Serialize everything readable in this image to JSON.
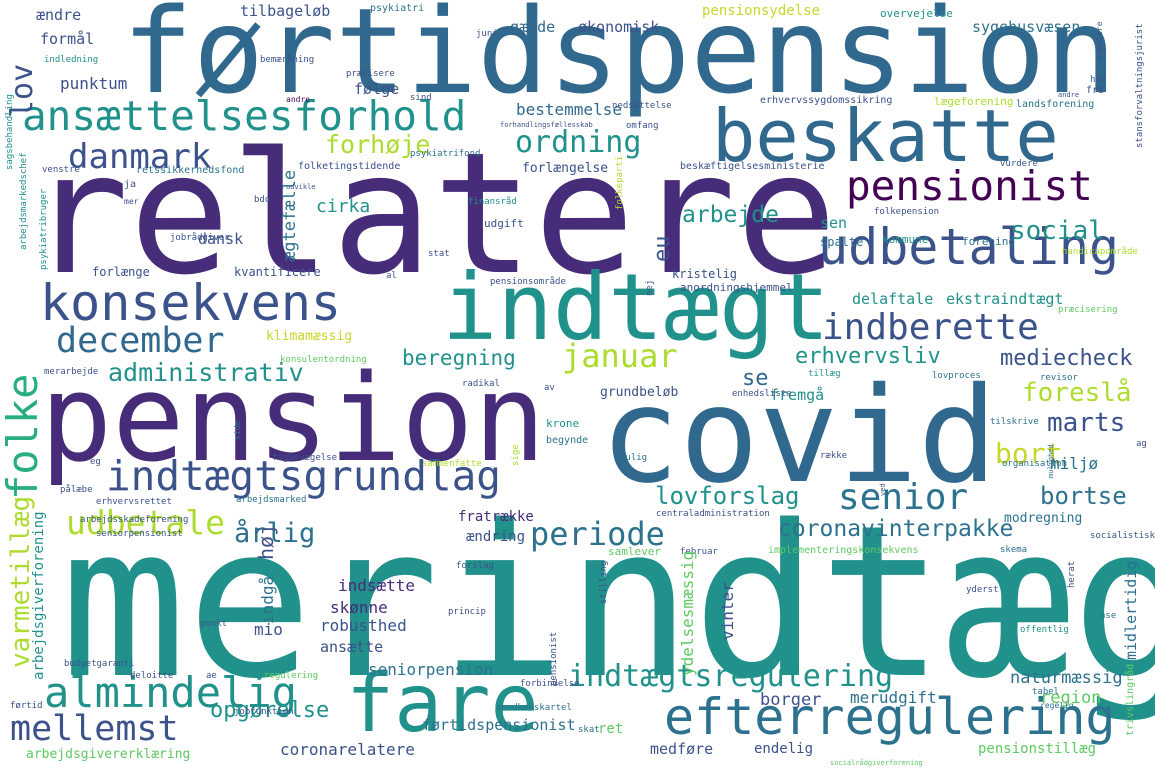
{
  "palette": {
    "dark_purple": "#440154",
    "indigo": "#472c7a",
    "blue": "#3b528b",
    "steel": "#2c728e",
    "teal": "#21918c",
    "green_teal": "#28ae80",
    "green": "#5ec962",
    "lime": "#addc30",
    "yellow": "#c8d62a",
    "grey_blue": "#31688e"
  },
  "words": {
    "w1": "førtidspension",
    "w2": "relatere",
    "w3": "merindtægt",
    "w4": "pension",
    "w5": "covid",
    "w6": "indtægt",
    "w7": "beskatte",
    "w8": "konsekvens",
    "w9": "fare",
    "w10": "efterregulering",
    "w11": "udbetaling",
    "w12": "ansættelsesforhold",
    "w13": "pensionist",
    "w14": "indtægtsgrundlag",
    "w15": "almindelig",
    "w16": "december",
    "w17": "danmark",
    "w18": "indberette",
    "w19": "senior",
    "w20": "mellemst",
    "w21": "indtægtsregulering",
    "w22": "januar",
    "w23": "ordning",
    "w24": "udbetale",
    "w25": "folke",
    "w26": "varmetillæg",
    "w27": "coronavinterpakke",
    "w28": "administrativ",
    "w29": "lovforslag",
    "w30": "periode",
    "w31": "årlig",
    "w32": "foreslå",
    "w33": "marts",
    "w34": "bort",
    "w35": "forhøje",
    "w36": "social",
    "w37": "arbejde",
    "w38": "erhvervsliv",
    "w39": "mediecheck",
    "w40": "beregning",
    "w41": "opgørelse",
    "w42": "bortse",
    "w43": "lov",
    "w44": "udgift",
    "w45": "naturmæssig",
    "w46": "borger",
    "w47": "merudgift",
    "w48": "region",
    "w49": "seniorpension",
    "w50": "robusthed",
    "w51": "skønne",
    "w52": "indsætte",
    "w53": "ansætte",
    "w54": "mio",
    "w55": "høj",
    "w56": "ægtefælle",
    "w57": "cirka",
    "w58": "dansk",
    "w59": "punktum",
    "w60": "bestemmelse",
    "w61": "tilbageløb",
    "w62": "økonomisk",
    "w63": "gælde",
    "w64": "sygehusvæsen",
    "w65": "pensionsydelse",
    "w66": "følge",
    "w67": "formål",
    "w68": "ændre",
    "w69": "sen",
    "w70": "eu",
    "w71": "kristelig",
    "w72": "delaftale",
    "w73": "ekstraindtægt",
    "w74": "se",
    "w75": "miljø",
    "w76": "fremgå",
    "w77": "grundbeløb",
    "w78": "klimamæssig",
    "w79": "forlænge",
    "w80": "kvantificere",
    "w81": "fratrække",
    "w82": "ændring",
    "w83": "modregning",
    "w84": "arbejdsgiverforening",
    "w85": "indgå",
    "w86": "vinter",
    "w87": "ydelsesmæssig",
    "w88": "midlertidig",
    "w89": "førtidspensionist",
    "w90": "coronarelatere",
    "w91": "medføre",
    "w92": "endelig",
    "w93": "pensionstillæg",
    "w94": "arbejdsgivererklæring",
    "w95": "ret",
    "w96": "forlængelse",
    "w97": "forening",
    "w98": "kommune",
    "w99": "spalte",
    "w100": "folkepension",
    "w101": "beskæftigelsesministerie",
    "w102": "jobrådgiver",
    "w103": "psykiatri",
    "w104": "overvejelse",
    "w105": "nedsættelse",
    "w106": "lægeforening",
    "w107": "landsforening",
    "w108": "erhvervssygdomssikring",
    "w109": "psykiatrifond",
    "w110": "folketingstidende",
    "w111": "retssikkerhedsfond",
    "w112": "finansråd",
    "w113": "pensionsområde",
    "w114": "anordningshjemmel",
    "w115": "handicapområde",
    "w116": "præcisering",
    "w117": "konsulentordning",
    "w118": "merarbejde",
    "w119": "radikal",
    "w120": "revisor",
    "w121": "tilskrive",
    "w122": "lovproces",
    "w123": "enhedsliste",
    "w124": "tillæg",
    "w125": "krone",
    "w126": "begynde",
    "w127": "fagbevægelse",
    "w128": "sammenfatte",
    "w129": "organisation",
    "w130": "erhvervsrettet",
    "w131": "arbejdsmarked",
    "w132": "centraladministration",
    "w133": "samlever",
    "w134": "februar",
    "w135": "implementeringskonsekvens",
    "w136": "skema",
    "w137": "socialistisk",
    "w138": "forslag",
    "w139": "princip",
    "w140": "yderst",
    "w141": "offentlig",
    "w142": "budgetgaranti",
    "w143": "deloitte",
    "w144": "regulering",
    "w145": "forbindelse",
    "w146": "sundhedskartel",
    "w147": "skat",
    "w148": "tabel",
    "w149": "jobfunktion",
    "w150": "førtid",
    "w151": "stat",
    "w152": "al",
    "w153": "nej",
    "w154": "mulig",
    "w155": "række",
    "w156": "mulighed",
    "w157": "indledning",
    "w158": "bemærkning",
    "w159": "juni",
    "w160": "præcisere",
    "w161": "sind",
    "w162": "omfang",
    "w163": "andre",
    "w164": "sagsbehandling",
    "w165": "arbejdsmarkedschef",
    "w166": "psykiatribruger",
    "w167": "venstre",
    "w168": "bdo",
    "w169": "mer",
    "w170": "ja",
    "w171": "arbejdsskadeforening",
    "w172": "seniorpensionist",
    "w173": "pålæbe",
    "w174": "punkt",
    "w175": "stilling",
    "w176": "ase",
    "w177": "herat",
    "w178": "trivslingråd",
    "w179": "regelig",
    "w180": "socialrådgiverforening",
    "w181": "sige",
    "w182": "side",
    "w183": "fri",
    "w184": "her",
    "w185": "supplere",
    "w186": "stansforvaltningsjurist",
    "w187": "vurdere",
    "w188": "ved",
    "w189": "ag",
    "w190": "eg",
    "w191": "ae",
    "w192": "av",
    "w193": "folkeparti",
    "w194": "forhandlingsfællesskab",
    "w195": "udvikle",
    "w196": "pensionist"
  }
}
